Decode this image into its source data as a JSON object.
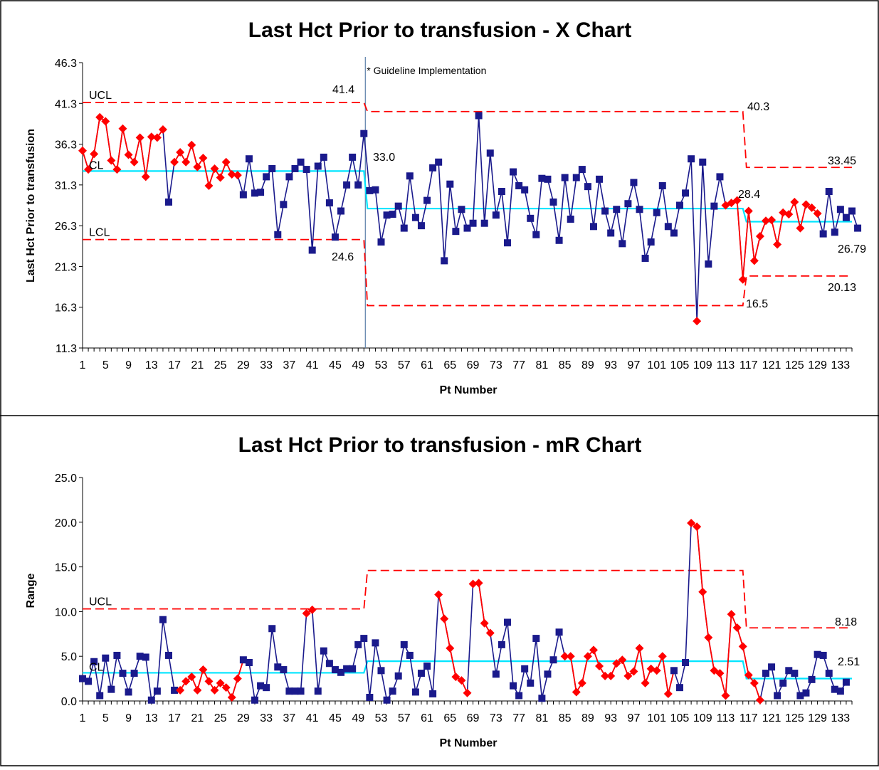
{
  "colors": {
    "in_control": "#1a1a8c",
    "signal": "#ff0000",
    "center_line": "#00e5ff",
    "limit": "#ff0000",
    "guideline": "#5b7fa8"
  },
  "chart_data": [
    {
      "type": "line",
      "title": "Last Hct Prior to transfusion - X Chart",
      "xlabel": "Pt Number",
      "ylabel": "Last Hct Prior to transfusion",
      "xlim": [
        1,
        135
      ],
      "ylim": [
        11.3,
        46.3
      ],
      "yticks": [
        "46.3",
        "41.3",
        "36.3",
        "31.3",
        "26.3",
        "21.3",
        "16.3",
        "11.3"
      ],
      "xtick_labels": [
        "1",
        "5",
        "9",
        "13",
        "17",
        "21",
        "25",
        "29",
        "33",
        "37",
        "41",
        "45",
        "49",
        "53",
        "57",
        "61",
        "65",
        "69",
        "73",
        "77",
        "81",
        "85",
        "89",
        "93",
        "97",
        "101",
        "105",
        "109",
        "113",
        "117",
        "121",
        "125",
        "129",
        "133"
      ],
      "grid": false,
      "guideline": {
        "x": 50,
        "label": "* Guideline Implementation"
      },
      "limit_labels": [
        "UCL",
        "CL",
        "LCL"
      ],
      "phases": [
        {
          "start": 1,
          "end": 50,
          "ucl": 41.4,
          "cl": 33.0,
          "lcl": 24.6
        },
        {
          "start": 50,
          "end": 116,
          "ucl": 40.3,
          "cl": 28.4,
          "lcl": 16.5
        },
        {
          "start": 116,
          "end": 135,
          "ucl": 33.45,
          "cl": 26.79,
          "lcl": 20.13
        }
      ],
      "annotations": [
        "41.4",
        "33.0",
        "24.6",
        "40.3",
        "28.4",
        "16.5",
        "33.45",
        "26.79",
        "20.13"
      ],
      "series": [
        {
          "x_start": 1,
          "values": [
            35.5,
            33.2,
            35.1,
            39.6,
            39.1,
            34.3,
            33.2,
            38.2,
            35.0,
            34.1,
            37.1,
            32.3,
            37.2,
            37.1,
            38.1,
            29.2,
            34.1,
            35.3,
            34.1,
            36.2,
            33.5,
            34.6,
            31.2,
            33.3,
            32.2,
            34.1,
            32.6,
            32.5,
            30.1,
            34.5,
            30.3,
            30.4,
            32.3,
            33.3,
            25.2,
            28.9,
            32.3,
            33.3,
            34.1,
            33.2,
            23.3,
            33.6,
            34.7,
            29.1,
            24.9,
            28.1,
            31.3,
            34.7,
            31.3,
            37.6,
            30.6,
            30.7,
            24.3,
            27.6,
            27.7,
            28.7,
            26.0,
            32.4,
            27.3,
            26.3,
            29.4,
            33.4,
            34.1,
            22.0,
            31.4,
            25.6,
            28.3,
            26.0,
            26.6,
            39.8,
            26.6,
            35.2,
            27.6,
            30.5,
            24.2,
            32.9,
            31.2,
            30.7,
            27.2,
            25.2,
            32.1,
            32.0,
            29.2,
            24.5,
            32.2,
            27.1,
            32.2,
            33.2,
            31.1,
            26.2,
            32.0,
            28.1,
            25.4,
            28.3,
            24.1,
            29.0,
            31.6,
            28.3,
            22.3,
            24.3,
            27.9,
            31.2,
            26.2,
            25.4,
            28.8,
            30.3,
            34.5,
            14.6,
            34.1,
            21.6,
            28.7,
            32.3,
            28.8,
            29.1,
            29.4,
            19.7,
            28.1,
            22.0,
            25.0,
            26.9,
            27.0,
            24.0,
            27.9,
            27.7,
            29.2,
            26.0,
            28.9,
            28.5,
            27.8,
            25.3,
            30.5,
            25.5,
            28.3,
            27.3,
            28.1,
            26.0
          ]
        }
      ],
      "signal_points": [
        1,
        2,
        3,
        4,
        5,
        6,
        7,
        8,
        9,
        10,
        11,
        12,
        13,
        14,
        15,
        17,
        18,
        19,
        20,
        21,
        22,
        23,
        24,
        25,
        26,
        27,
        28,
        108,
        113,
        114,
        115,
        116,
        117,
        118,
        119,
        120,
        121,
        122,
        123,
        124,
        125,
        126,
        127,
        128,
        129
      ],
      "signal_step_points": [
        114,
        115,
        116,
        117,
        118,
        119,
        120,
        121,
        122,
        123,
        124,
        125,
        126,
        127,
        128,
        129
      ],
      "signal_segments": [
        [
          1,
          15
        ],
        [
          17,
          28
        ],
        [
          113,
          129
        ]
      ]
    },
    {
      "type": "line",
      "title": "Last Hct Prior to transfusion - mR Chart",
      "xlabel": "Pt Number",
      "ylabel": "Range",
      "xlim": [
        1,
        135
      ],
      "ylim": [
        0,
        25
      ],
      "yticks": [
        "25.0",
        "20.0",
        "15.0",
        "10.0",
        "5.0",
        "0.0"
      ],
      "xtick_labels": [
        "1",
        "5",
        "9",
        "13",
        "17",
        "21",
        "25",
        "29",
        "33",
        "37",
        "41",
        "45",
        "49",
        "53",
        "57",
        "61",
        "65",
        "69",
        "73",
        "77",
        "81",
        "85",
        "89",
        "93",
        "97",
        "101",
        "105",
        "109",
        "113",
        "117",
        "121",
        "125",
        "129",
        "133"
      ],
      "grid": false,
      "limit_labels": [
        "UCL",
        "CL"
      ],
      "phases": [
        {
          "start": 1,
          "end": 50,
          "ucl": 10.3,
          "cl": 3.15
        },
        {
          "start": 50,
          "end": 116,
          "ucl": 14.6,
          "cl": 4.45
        },
        {
          "start": 116,
          "end": 135,
          "ucl": 8.18,
          "cl": 2.51
        }
      ],
      "annotations": [
        "8.18",
        "2.51"
      ],
      "series": [
        {
          "x_start": 1,
          "values": [
            2.5,
            2.2,
            4.4,
            0.6,
            4.8,
            1.3,
            5.1,
            3.1,
            1.0,
            3.1,
            5.0,
            4.9,
            0.1,
            1.1,
            9.1,
            5.1,
            1.2,
            1.2,
            2.2,
            2.7,
            1.2,
            3.5,
            2.2,
            1.2,
            2.0,
            1.5,
            0.4,
            2.5,
            4.6,
            4.3,
            0.1,
            1.7,
            1.5,
            8.1,
            3.8,
            3.5,
            1.1,
            1.1,
            1.1,
            9.8,
            10.2,
            1.1,
            5.6,
            4.2,
            3.5,
            3.2,
            3.6,
            3.6,
            6.3,
            7.0,
            0.4,
            6.5,
            3.4,
            0.1,
            1.1,
            2.8,
            6.3,
            5.1,
            1.0,
            3.1,
            3.9,
            0.8,
            11.9,
            9.2,
            5.9,
            2.7,
            2.3,
            0.9,
            13.1,
            13.2,
            8.7,
            7.6,
            3.0,
            6.3,
            8.8,
            1.7,
            0.6,
            3.6,
            2.0,
            7.0,
            0.3,
            3.0,
            4.6,
            7.7,
            5.0,
            5.0,
            1.0,
            2.0,
            5.0,
            5.7,
            3.9,
            2.8,
            2.8,
            4.2,
            4.6,
            2.8,
            3.3,
            5.9,
            2.0,
            3.6,
            3.4,
            5.0,
            0.8,
            3.4,
            1.5,
            4.3,
            19.9,
            19.5,
            12.2,
            7.1,
            3.4,
            3.1,
            0.6,
            9.7,
            8.2,
            6.1,
            2.9,
            2.0,
            0.1,
            3.1,
            3.8,
            0.6,
            2.0,
            3.4,
            3.1,
            0.6,
            0.9,
            2.4,
            5.2,
            5.1,
            3.1,
            1.3,
            1.1,
            2.1
          ]
        }
      ],
      "signal_points": [
        18,
        19,
        20,
        21,
        22,
        23,
        24,
        25,
        26,
        27,
        28,
        40,
        41,
        63,
        64,
        65,
        66,
        67,
        68,
        69,
        70,
        71,
        72,
        85,
        86,
        87,
        88,
        89,
        90,
        91,
        92,
        93,
        94,
        95,
        96,
        97,
        98,
        99,
        100,
        101,
        102,
        103,
        107,
        108,
        109,
        110,
        111,
        112,
        113,
        114,
        115,
        116,
        117,
        118,
        119
      ],
      "signal_segments": [
        [
          17,
          29
        ],
        [
          40,
          41
        ],
        [
          63,
          68
        ],
        [
          69,
          72
        ],
        [
          85,
          104
        ],
        [
          107,
          119
        ]
      ]
    }
  ]
}
